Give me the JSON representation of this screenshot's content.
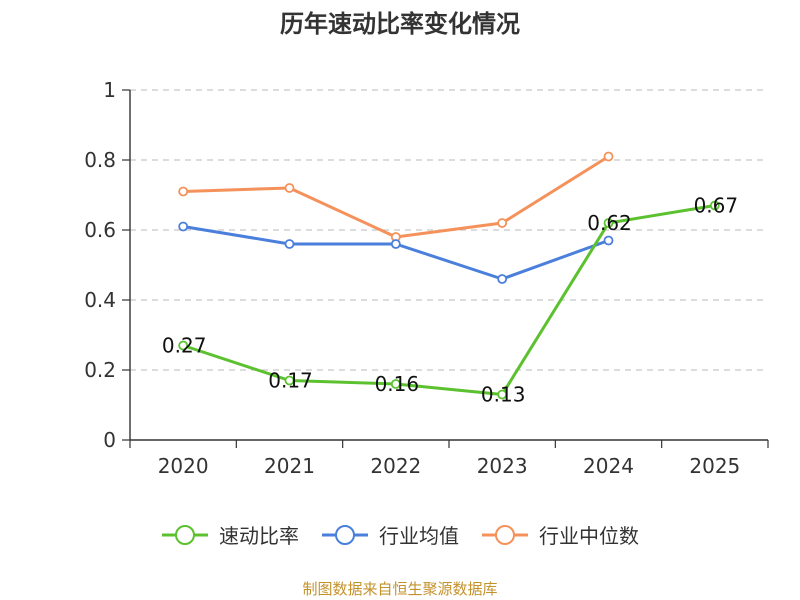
{
  "chart_data": {
    "type": "line",
    "title": "历年速动比率变化情况",
    "categories": [
      "2020",
      "2021",
      "2022",
      "2023",
      "2024",
      "2025"
    ],
    "ylim": [
      0,
      1
    ],
    "yticks": [
      0,
      0.2,
      0.4,
      0.6,
      0.8,
      1
    ],
    "ytick_labels": [
      "0",
      "0.2",
      "0.4",
      "0.6",
      "0.8",
      "1"
    ],
    "grid": true,
    "legend_position": "bottom",
    "series": [
      {
        "name": "速动比率",
        "color": "#5cc12f",
        "values": [
          0.27,
          0.17,
          0.16,
          0.13,
          0.62,
          0.67
        ],
        "labels": [
          "0.27",
          "0.17",
          "0.16",
          "0.13",
          "0.62",
          "0.67"
        ]
      },
      {
        "name": "行业均值",
        "color": "#4a7fdc",
        "values": [
          0.61,
          0.56,
          0.56,
          0.46,
          0.57,
          null
        ]
      },
      {
        "name": "行业中位数",
        "color": "#f5915a",
        "values": [
          0.71,
          0.72,
          0.58,
          0.62,
          0.81,
          null
        ]
      }
    ]
  },
  "footer": {
    "source": "制图数据来自恒生聚源数据库"
  }
}
